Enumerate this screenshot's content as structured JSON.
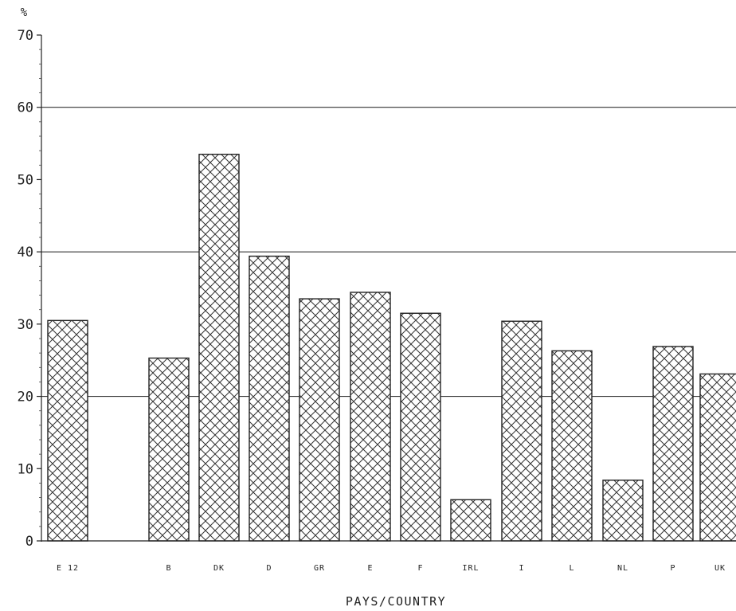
{
  "chart_data": {
    "type": "bar",
    "title": "",
    "unit_label": "%",
    "xlabel": "PAYS/COUNTRY",
    "ylabel": "",
    "ylim": [
      0,
      70
    ],
    "yticks": [
      0,
      10,
      20,
      30,
      40,
      50,
      60,
      70
    ],
    "gridlines": [
      20,
      40,
      60
    ],
    "grid": true,
    "legend": "none",
    "bar_pattern": "cross-hatch",
    "colors": {
      "bar_stroke": "#222222",
      "hatch": "#333333",
      "grid": "#333333"
    },
    "categories": [
      "E 12",
      "B",
      "DK",
      "D",
      "GR",
      "E",
      "F",
      "IRL",
      "I",
      "L",
      "NL",
      "P",
      "UK"
    ],
    "values": [
      30.5,
      25.3,
      53.5,
      39.4,
      33.5,
      34.4,
      31.5,
      5.7,
      30.4,
      26.3,
      8.4,
      26.9,
      23.1
    ]
  }
}
